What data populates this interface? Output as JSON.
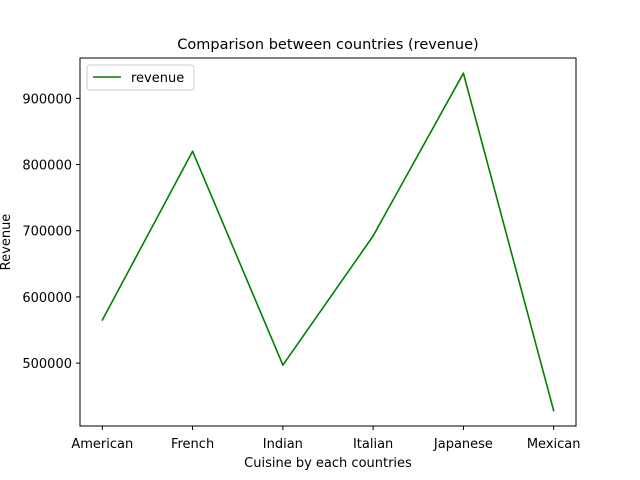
{
  "chart_data": {
    "type": "line",
    "title": "Comparison between countries (revenue)",
    "xlabel": "Cuisine by each countries",
    "ylabel": "Revenue",
    "categories": [
      "American",
      "French",
      "Indian",
      "Italian",
      "Japanese",
      "Mexican"
    ],
    "series": [
      {
        "name": "revenue",
        "color": "#008000",
        "values": [
          565000,
          820000,
          497000,
          692000,
          938000,
          428000
        ]
      }
    ],
    "ylim": [
      405000,
      961000
    ],
    "yticks": [
      500000,
      600000,
      700000,
      800000,
      900000
    ],
    "ytick_labels": [
      "500000",
      "600000",
      "700000",
      "800000",
      "900000"
    ],
    "grid": false,
    "legend_position": "top-left"
  }
}
